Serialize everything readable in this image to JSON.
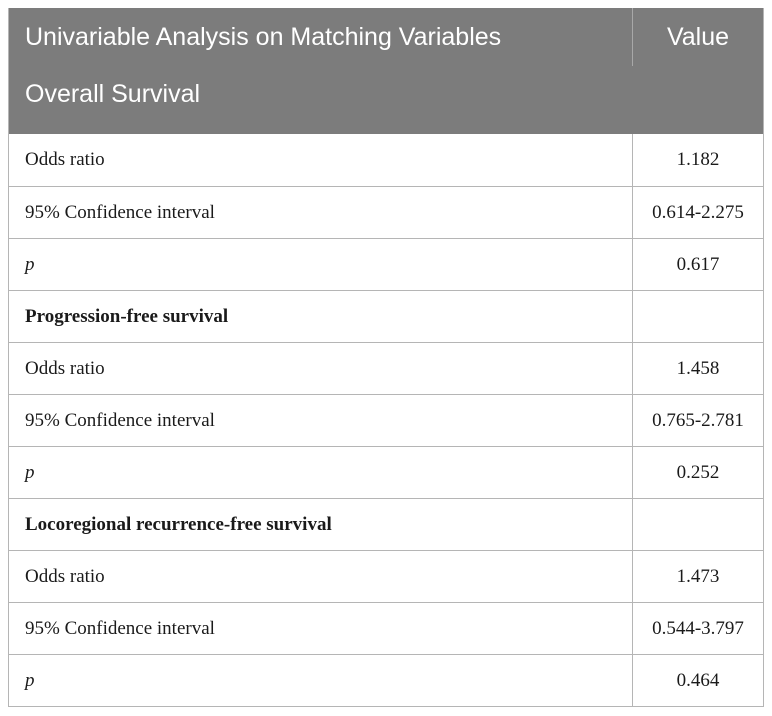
{
  "header": {
    "col1_line1": "Univariable Analysis on Matching Variables",
    "col1_line2": "Overall Survival",
    "col2": "Value"
  },
  "rows": [
    {
      "label": "Odds ratio",
      "value": "1.182",
      "kind": "stat"
    },
    {
      "label": "95% Confidence interval",
      "value": "0.614-2.275",
      "kind": "stat"
    },
    {
      "label": "p",
      "value": "0.617",
      "kind": "p"
    },
    {
      "label": "Progression-free survival",
      "value": "",
      "kind": "section"
    },
    {
      "label": "Odds ratio",
      "value": "1.458",
      "kind": "stat"
    },
    {
      "label": "95% Confidence interval",
      "value": "0.765-2.781",
      "kind": "stat"
    },
    {
      "label": "p",
      "value": "0.252",
      "kind": "p"
    },
    {
      "label": "Locoregional recurrence-free survival",
      "value": "",
      "kind": "section"
    },
    {
      "label": "Odds ratio",
      "value": "1.473",
      "kind": "stat"
    },
    {
      "label": "95% Confidence interval",
      "value": "0.544-3.797",
      "kind": "stat"
    },
    {
      "label": "p",
      "value": "0.464",
      "kind": "p"
    }
  ],
  "colors": {
    "header_bg": "#7c7c7c",
    "header_text": "#ffffff",
    "grid_line": "#b5b5b5"
  }
}
